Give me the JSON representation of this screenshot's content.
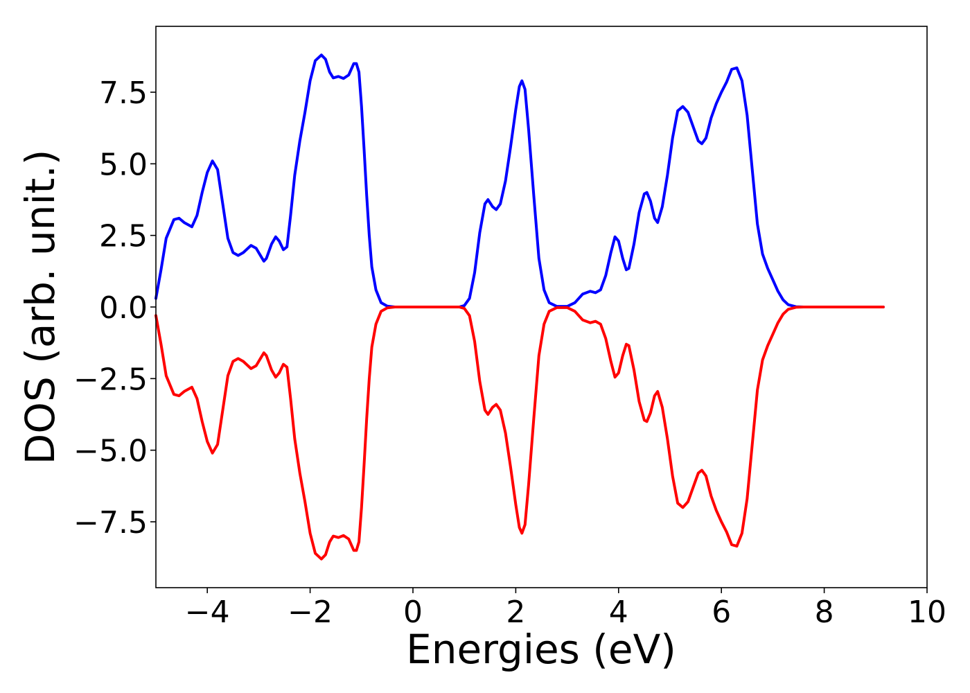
{
  "chart_data": {
    "type": "line",
    "title": "",
    "xlabel": "Energies (eV)",
    "ylabel": "DOS (arb. unit.)",
    "xlim": [
      -5,
      10
    ],
    "ylim": [
      -9.8,
      9.8
    ],
    "grid": false,
    "legend": "none",
    "x_ticks": [
      "−4",
      "−2",
      "0",
      "2",
      "4",
      "6",
      "8",
      "10"
    ],
    "x_tick_values": [
      -4,
      -2,
      0,
      2,
      4,
      6,
      8,
      10
    ],
    "y_ticks": [
      "−7.5",
      "−5.0",
      "−2.5",
      "0.0",
      "2.5",
      "5.0",
      "7.5"
    ],
    "y_tick_values": [
      -7.5,
      -5.0,
      -2.5,
      0.0,
      2.5,
      5.0,
      7.5
    ],
    "series": [
      {
        "color": "#0000ff",
        "points": [
          [
            -5.0,
            0.3
          ],
          [
            -4.9,
            1.3
          ],
          [
            -4.8,
            2.4
          ],
          [
            -4.65,
            3.05
          ],
          [
            -4.55,
            3.1
          ],
          [
            -4.45,
            2.95
          ],
          [
            -4.3,
            2.8
          ],
          [
            -4.2,
            3.2
          ],
          [
            -4.1,
            4.0
          ],
          [
            -4.0,
            4.7
          ],
          [
            -3.9,
            5.1
          ],
          [
            -3.8,
            4.8
          ],
          [
            -3.7,
            3.6
          ],
          [
            -3.6,
            2.4
          ],
          [
            -3.5,
            1.9
          ],
          [
            -3.4,
            1.8
          ],
          [
            -3.3,
            1.9
          ],
          [
            -3.15,
            2.15
          ],
          [
            -3.05,
            2.05
          ],
          [
            -2.95,
            1.75
          ],
          [
            -2.9,
            1.6
          ],
          [
            -2.85,
            1.7
          ],
          [
            -2.75,
            2.2
          ],
          [
            -2.67,
            2.45
          ],
          [
            -2.6,
            2.3
          ],
          [
            -2.52,
            2.0
          ],
          [
            -2.45,
            2.1
          ],
          [
            -2.38,
            3.2
          ],
          [
            -2.3,
            4.6
          ],
          [
            -2.2,
            5.8
          ],
          [
            -2.1,
            6.8
          ],
          [
            -2.0,
            7.9
          ],
          [
            -1.9,
            8.6
          ],
          [
            -1.78,
            8.8
          ],
          [
            -1.7,
            8.65
          ],
          [
            -1.62,
            8.2
          ],
          [
            -1.55,
            8.0
          ],
          [
            -1.45,
            8.05
          ],
          [
            -1.35,
            7.98
          ],
          [
            -1.25,
            8.1
          ],
          [
            -1.15,
            8.5
          ],
          [
            -1.1,
            8.5
          ],
          [
            -1.05,
            8.2
          ],
          [
            -1.0,
            7.0
          ],
          [
            -0.95,
            5.5
          ],
          [
            -0.9,
            3.9
          ],
          [
            -0.85,
            2.5
          ],
          [
            -0.8,
            1.4
          ],
          [
            -0.72,
            0.6
          ],
          [
            -0.62,
            0.15
          ],
          [
            -0.5,
            0.03
          ],
          [
            -0.35,
            0.0
          ],
          [
            0.9,
            0.0
          ],
          [
            1.0,
            0.05
          ],
          [
            1.1,
            0.3
          ],
          [
            1.2,
            1.2
          ],
          [
            1.3,
            2.6
          ],
          [
            1.4,
            3.6
          ],
          [
            1.46,
            3.75
          ],
          [
            1.55,
            3.5
          ],
          [
            1.62,
            3.4
          ],
          [
            1.7,
            3.6
          ],
          [
            1.8,
            4.4
          ],
          [
            1.9,
            5.6
          ],
          [
            2.0,
            6.9
          ],
          [
            2.07,
            7.7
          ],
          [
            2.12,
            7.9
          ],
          [
            2.18,
            7.6
          ],
          [
            2.25,
            6.2
          ],
          [
            2.35,
            3.9
          ],
          [
            2.45,
            1.7
          ],
          [
            2.55,
            0.6
          ],
          [
            2.65,
            0.15
          ],
          [
            2.8,
            0.02
          ],
          [
            3.0,
            0.02
          ],
          [
            3.15,
            0.15
          ],
          [
            3.3,
            0.45
          ],
          [
            3.45,
            0.55
          ],
          [
            3.55,
            0.5
          ],
          [
            3.65,
            0.6
          ],
          [
            3.75,
            1.1
          ],
          [
            3.85,
            1.9
          ],
          [
            3.93,
            2.45
          ],
          [
            4.0,
            2.3
          ],
          [
            4.08,
            1.7
          ],
          [
            4.15,
            1.3
          ],
          [
            4.2,
            1.35
          ],
          [
            4.3,
            2.2
          ],
          [
            4.4,
            3.3
          ],
          [
            4.5,
            3.95
          ],
          [
            4.55,
            4.0
          ],
          [
            4.62,
            3.7
          ],
          [
            4.7,
            3.1
          ],
          [
            4.76,
            2.95
          ],
          [
            4.85,
            3.5
          ],
          [
            4.95,
            4.6
          ],
          [
            5.05,
            5.9
          ],
          [
            5.15,
            6.85
          ],
          [
            5.25,
            7.0
          ],
          [
            5.35,
            6.8
          ],
          [
            5.45,
            6.3
          ],
          [
            5.55,
            5.8
          ],
          [
            5.62,
            5.7
          ],
          [
            5.7,
            5.9
          ],
          [
            5.8,
            6.6
          ],
          [
            5.9,
            7.1
          ],
          [
            6.0,
            7.5
          ],
          [
            6.1,
            7.85
          ],
          [
            6.2,
            8.3
          ],
          [
            6.3,
            8.35
          ],
          [
            6.4,
            7.9
          ],
          [
            6.5,
            6.7
          ],
          [
            6.6,
            4.8
          ],
          [
            6.7,
            2.9
          ],
          [
            6.8,
            1.85
          ],
          [
            6.9,
            1.35
          ],
          [
            7.0,
            0.95
          ],
          [
            7.1,
            0.55
          ],
          [
            7.2,
            0.25
          ],
          [
            7.3,
            0.08
          ],
          [
            7.45,
            0.01
          ],
          [
            7.6,
            0.0
          ],
          [
            9.15,
            0.0
          ]
        ]
      },
      {
        "color": "#ff0000",
        "points": [
          [
            -5.0,
            -0.3
          ],
          [
            -4.9,
            -1.3
          ],
          [
            -4.8,
            -2.4
          ],
          [
            -4.65,
            -3.05
          ],
          [
            -4.55,
            -3.1
          ],
          [
            -4.45,
            -2.95
          ],
          [
            -4.3,
            -2.8
          ],
          [
            -4.2,
            -3.2
          ],
          [
            -4.1,
            -4.0
          ],
          [
            -4.0,
            -4.7
          ],
          [
            -3.9,
            -5.1
          ],
          [
            -3.8,
            -4.8
          ],
          [
            -3.7,
            -3.6
          ],
          [
            -3.6,
            -2.4
          ],
          [
            -3.5,
            -1.9
          ],
          [
            -3.4,
            -1.8
          ],
          [
            -3.3,
            -1.9
          ],
          [
            -3.15,
            -2.15
          ],
          [
            -3.05,
            -2.05
          ],
          [
            -2.95,
            -1.75
          ],
          [
            -2.9,
            -1.6
          ],
          [
            -2.85,
            -1.7
          ],
          [
            -2.75,
            -2.2
          ],
          [
            -2.67,
            -2.45
          ],
          [
            -2.6,
            -2.3
          ],
          [
            -2.52,
            -2.0
          ],
          [
            -2.45,
            -2.1
          ],
          [
            -2.38,
            -3.2
          ],
          [
            -2.3,
            -4.6
          ],
          [
            -2.2,
            -5.8
          ],
          [
            -2.1,
            -6.8
          ],
          [
            -2.0,
            -7.9
          ],
          [
            -1.9,
            -8.6
          ],
          [
            -1.78,
            -8.8
          ],
          [
            -1.7,
            -8.65
          ],
          [
            -1.62,
            -8.2
          ],
          [
            -1.55,
            -8.0
          ],
          [
            -1.45,
            -8.05
          ],
          [
            -1.35,
            -7.98
          ],
          [
            -1.25,
            -8.1
          ],
          [
            -1.15,
            -8.5
          ],
          [
            -1.1,
            -8.5
          ],
          [
            -1.05,
            -8.2
          ],
          [
            -1.0,
            -7.0
          ],
          [
            -0.95,
            -5.5
          ],
          [
            -0.9,
            -3.9
          ],
          [
            -0.85,
            -2.5
          ],
          [
            -0.8,
            -1.4
          ],
          [
            -0.72,
            -0.6
          ],
          [
            -0.62,
            -0.15
          ],
          [
            -0.5,
            -0.03
          ],
          [
            -0.35,
            0.0
          ],
          [
            0.9,
            0.0
          ],
          [
            1.0,
            -0.05
          ],
          [
            1.1,
            -0.3
          ],
          [
            1.2,
            -1.2
          ],
          [
            1.3,
            -2.6
          ],
          [
            1.4,
            -3.6
          ],
          [
            1.46,
            -3.75
          ],
          [
            1.55,
            -3.5
          ],
          [
            1.62,
            -3.4
          ],
          [
            1.7,
            -3.6
          ],
          [
            1.8,
            -4.4
          ],
          [
            1.9,
            -5.6
          ],
          [
            2.0,
            -6.9
          ],
          [
            2.07,
            -7.7
          ],
          [
            2.12,
            -7.9
          ],
          [
            2.18,
            -7.6
          ],
          [
            2.25,
            -6.2
          ],
          [
            2.35,
            -3.9
          ],
          [
            2.45,
            -1.7
          ],
          [
            2.55,
            -0.6
          ],
          [
            2.65,
            -0.15
          ],
          [
            2.8,
            -0.02
          ],
          [
            3.0,
            -0.02
          ],
          [
            3.15,
            -0.15
          ],
          [
            3.3,
            -0.45
          ],
          [
            3.45,
            -0.55
          ],
          [
            3.55,
            -0.5
          ],
          [
            3.65,
            -0.6
          ],
          [
            3.75,
            -1.1
          ],
          [
            3.85,
            -1.9
          ],
          [
            3.93,
            -2.45
          ],
          [
            4.0,
            -2.3
          ],
          [
            4.08,
            -1.7
          ],
          [
            4.15,
            -1.3
          ],
          [
            4.2,
            -1.35
          ],
          [
            4.3,
            -2.2
          ],
          [
            4.4,
            -3.3
          ],
          [
            4.5,
            -3.95
          ],
          [
            4.55,
            -4.0
          ],
          [
            4.62,
            -3.7
          ],
          [
            4.7,
            -3.1
          ],
          [
            4.76,
            -2.95
          ],
          [
            4.85,
            -3.5
          ],
          [
            4.95,
            -4.6
          ],
          [
            5.05,
            -5.9
          ],
          [
            5.15,
            -6.85
          ],
          [
            5.25,
            -7.0
          ],
          [
            5.35,
            -6.8
          ],
          [
            5.45,
            -6.3
          ],
          [
            5.55,
            -5.8
          ],
          [
            5.62,
            -5.7
          ],
          [
            5.7,
            -5.9
          ],
          [
            5.8,
            -6.6
          ],
          [
            5.9,
            -7.1
          ],
          [
            6.0,
            -7.5
          ],
          [
            6.1,
            -7.85
          ],
          [
            6.2,
            -8.3
          ],
          [
            6.3,
            -8.35
          ],
          [
            6.4,
            -7.9
          ],
          [
            6.5,
            -6.7
          ],
          [
            6.6,
            -4.8
          ],
          [
            6.7,
            -2.9
          ],
          [
            6.8,
            -1.85
          ],
          [
            6.9,
            -1.35
          ],
          [
            7.0,
            -0.95
          ],
          [
            7.1,
            -0.55
          ],
          [
            7.2,
            -0.25
          ],
          [
            7.3,
            -0.08
          ],
          [
            7.45,
            -0.01
          ],
          [
            7.6,
            0.0
          ],
          [
            9.15,
            0.0
          ]
        ]
      }
    ]
  }
}
